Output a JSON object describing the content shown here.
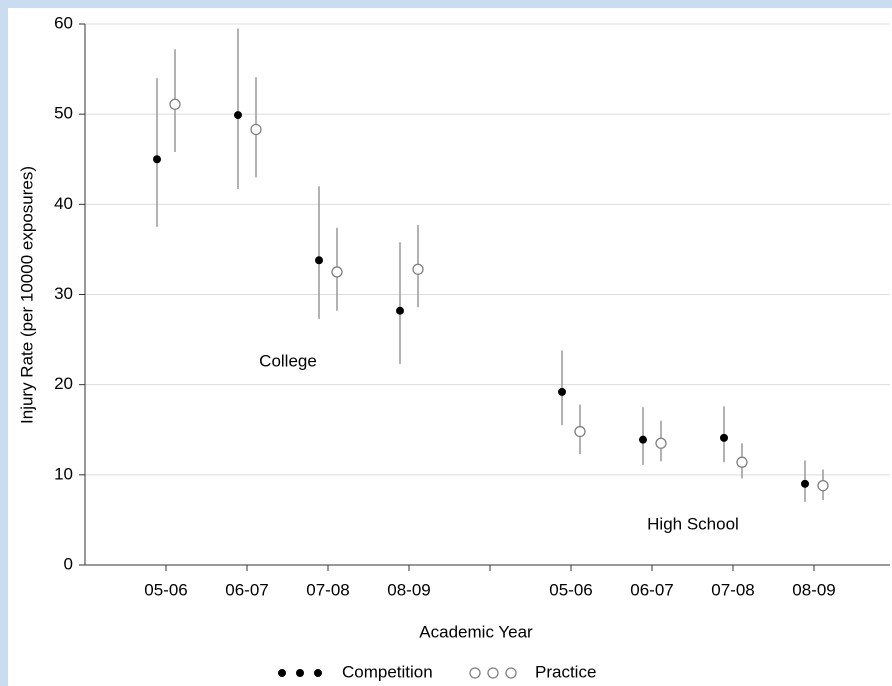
{
  "chart_data": {
    "type": "errorbar-scatter",
    "x_label": "Academic Year",
    "y_label": "Injury Rate (per 10000 exposures)",
    "categories": [
      "05-06",
      "06-07",
      "07-08",
      "08-09",
      null,
      "05-06",
      "06-07",
      "07-08",
      "08-09"
    ],
    "annotations": [
      "College",
      "High School"
    ],
    "ylim": [
      0,
      60
    ],
    "yticks": [
      0,
      10,
      20,
      30,
      40,
      50,
      60
    ],
    "grid": true,
    "series": [
      {
        "name": "Competition",
        "color": "#000000",
        "marker": "filled",
        "values": [
          45,
          49.9,
          33.8,
          28.2,
          null,
          19.2,
          13.9,
          14.1,
          9
        ],
        "lower": [
          37.5,
          41.7,
          27.3,
          22.3,
          null,
          15.5,
          11.1,
          11.4,
          7
        ],
        "upper": [
          54,
          59.5,
          42,
          35.8,
          null,
          23.8,
          17.5,
          17.6,
          11.6
        ]
      },
      {
        "name": "Practice",
        "color": "#808080",
        "marker": "open",
        "values": [
          51.1,
          48.3,
          32.5,
          32.8,
          null,
          14.8,
          13.5,
          11.4,
          8.8
        ],
        "lower": [
          45.8,
          43,
          28.2,
          28.6,
          null,
          12.3,
          11.5,
          9.6,
          7.2
        ],
        "upper": [
          57.2,
          54.1,
          37.4,
          37.7,
          null,
          17.8,
          16,
          13.5,
          10.6
        ]
      }
    ]
  }
}
